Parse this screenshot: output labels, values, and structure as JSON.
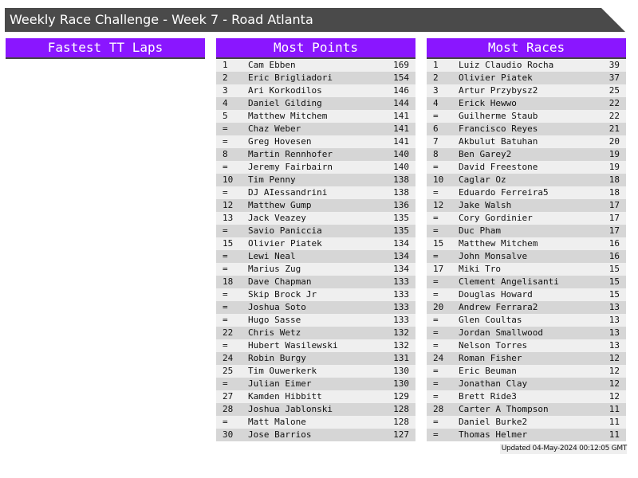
{
  "title": "Weekly Race Challenge - Week 7 - Road Atlanta",
  "colors": {
    "header": "#8a16ff",
    "titlebar": "#4a4a4a",
    "row_light": "#efefef",
    "row_dark": "#d6d6d6"
  },
  "fastest_tt": {
    "title": "Fastest TT Laps",
    "rows": []
  },
  "most_points": {
    "title": "Most Points",
    "rows": [
      [
        "1",
        "Cam Ebben",
        "169"
      ],
      [
        "2",
        "Eric Brigliadori",
        "154"
      ],
      [
        "3",
        "Ari Korkodilos",
        "146"
      ],
      [
        "4",
        "Daniel Gilding",
        "144"
      ],
      [
        "5",
        "Matthew Mitchem",
        "141"
      ],
      [
        "=",
        "Chaz Weber",
        "141"
      ],
      [
        "=",
        "Greg Hovesen",
        "141"
      ],
      [
        "8",
        "Martin Rennhofer",
        "140"
      ],
      [
        "=",
        "Jeremy Fairbairn",
        "140"
      ],
      [
        "10",
        "Tim Penny",
        "138"
      ],
      [
        "=",
        "DJ AIessandrini",
        "138"
      ],
      [
        "12",
        "Matthew Gump",
        "136"
      ],
      [
        "13",
        "Jack Veazey",
        "135"
      ],
      [
        "=",
        "Savio Paniccia",
        "135"
      ],
      [
        "15",
        "Olivier Piatek",
        "134"
      ],
      [
        "=",
        "Lewi Neal",
        "134"
      ],
      [
        "=",
        "Marius Zug",
        "134"
      ],
      [
        "18",
        "Dave Chapman",
        "133"
      ],
      [
        "=",
        "Skip Brock Jr",
        "133"
      ],
      [
        "=",
        "Joshua Soto",
        "133"
      ],
      [
        "=",
        "Hugo Sasse",
        "133"
      ],
      [
        "22",
        "Chris Wetz",
        "132"
      ],
      [
        "=",
        "Hubert Wasilewski",
        "132"
      ],
      [
        "24",
        "Robin Burgy",
        "131"
      ],
      [
        "25",
        "Tim Ouwerkerk",
        "130"
      ],
      [
        "=",
        "Julian Eimer",
        "130"
      ],
      [
        "27",
        "Kamden Hibbitt",
        "129"
      ],
      [
        "28",
        "Joshua Jablonski",
        "128"
      ],
      [
        "=",
        "Matt Malone",
        "128"
      ],
      [
        "30",
        "Jose Barrios",
        "127"
      ]
    ]
  },
  "most_races": {
    "title": "Most Races",
    "rows": [
      [
        "1",
        "Luiz Claudio Rocha",
        "39"
      ],
      [
        "2",
        "Olivier Piatek",
        "37"
      ],
      [
        "3",
        "Artur Przybysz2",
        "25"
      ],
      [
        "4",
        "Erick Hewwo",
        "22"
      ],
      [
        "=",
        "Guilherme Staub",
        "22"
      ],
      [
        "6",
        "Francisco Reyes",
        "21"
      ],
      [
        "7",
        "Akbulut Batuhan",
        "20"
      ],
      [
        "8",
        "Ben Garey2",
        "19"
      ],
      [
        "=",
        "David Freestone",
        "19"
      ],
      [
        "10",
        "Caglar Oz",
        "18"
      ],
      [
        "=",
        "Eduardo Ferreira5",
        "18"
      ],
      [
        "12",
        "Jake Walsh",
        "17"
      ],
      [
        "=",
        "Cory Gordinier",
        "17"
      ],
      [
        "=",
        "Duc Pham",
        "17"
      ],
      [
        "15",
        "Matthew Mitchem",
        "16"
      ],
      [
        "=",
        "John Monsalve",
        "16"
      ],
      [
        "17",
        "Miki Tro",
        "15"
      ],
      [
        "=",
        "Clement Angelisanti",
        "15"
      ],
      [
        "=",
        "Douglas Howard",
        "15"
      ],
      [
        "20",
        "Andrew Ferrara2",
        "13"
      ],
      [
        "=",
        "Glen Coultas",
        "13"
      ],
      [
        "=",
        "Jordan Smallwood",
        "13"
      ],
      [
        "=",
        "Nelson Torres",
        "13"
      ],
      [
        "24",
        "Roman Fisher",
        "12"
      ],
      [
        "=",
        "Eric Beuman",
        "12"
      ],
      [
        "=",
        "Jonathan Clay",
        "12"
      ],
      [
        "=",
        "Brett Ride3",
        "12"
      ],
      [
        "28",
        "Carter A Thompson",
        "11"
      ],
      [
        "=",
        "Daniel Burke2",
        "11"
      ],
      [
        "=",
        "Thomas Helmer",
        "11"
      ]
    ]
  },
  "footer": "Updated 04-May-2024 00:12:05 GMT"
}
